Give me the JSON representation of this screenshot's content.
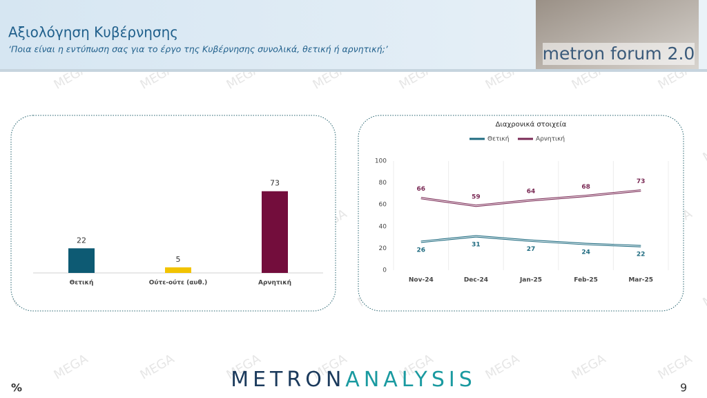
{
  "header": {
    "title": "Αξιολόγηση Κυβέρνησης",
    "subtitle": "‘Ποια είναι η εντύπωση σας για το έργο της Κυβέρνησης συνολικά, θετική ή αρνητική;’",
    "brand": "metron forum 2.0"
  },
  "watermark": "MEGA",
  "chart_data": [
    {
      "type": "bar",
      "categories": [
        "Θετική",
        "Ούτε-ούτε (αυθ.)",
        "Αρνητική"
      ],
      "values": [
        22,
        5,
        73
      ],
      "colors": [
        "#0d5a73",
        "#f2c300",
        "#730d3c"
      ]
    },
    {
      "type": "line",
      "title": "Διαχρονικά στοιχεία",
      "categories": [
        "Nov-24",
        "Dec-24",
        "Jan-25",
        "Feb-25",
        "Mar-25"
      ],
      "series": [
        {
          "name": "Θετική",
          "color": "#1f6b80",
          "values": [
            26,
            31,
            27,
            24,
            22
          ]
        },
        {
          "name": "Αρνητική",
          "color": "#7a2a55",
          "values": [
            66,
            59,
            64,
            68,
            73
          ]
        }
      ],
      "ylim": [
        0,
        100
      ],
      "yticks": [
        0,
        20,
        40,
        60,
        80,
        100
      ],
      "grid": true
    }
  ],
  "footer": {
    "brand_left": "METRON",
    "brand_right": "ANALYSIS",
    "unit": "%",
    "page": "9"
  }
}
